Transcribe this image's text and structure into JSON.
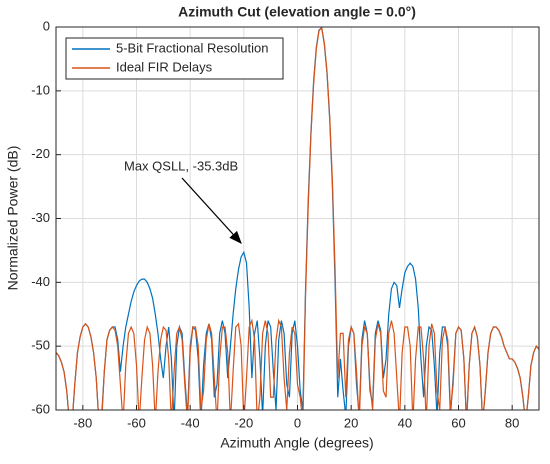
{
  "chart_data": {
    "type": "line",
    "title": "Azimuth Cut (elevation angle = 0.0°)",
    "xlabel": "Azimuth Angle (degrees)",
    "ylabel": "Normalized Power (dB)",
    "annotation": "Max QSLL, -35.3dB",
    "xlim": [
      -90,
      90
    ],
    "ylim": [
      -60,
      0
    ],
    "xticks": [
      -80,
      -60,
      -40,
      -20,
      0,
      20,
      40,
      60,
      80
    ],
    "yticks": [
      -60,
      -50,
      -40,
      -30,
      -20,
      -10,
      0
    ],
    "grid": true,
    "legend": "upper left",
    "x": [
      -90,
      -89,
      -88,
      -87,
      -86,
      -85,
      -84,
      -83,
      -82,
      -81,
      -80,
      -79,
      -78,
      -77,
      -76,
      -75,
      -74,
      -73,
      -72,
      -71,
      -70,
      -69,
      -68,
      -67,
      -66,
      -65,
      -64,
      -63,
      -62,
      -61,
      -60,
      -59,
      -58,
      -57,
      -56,
      -55,
      -54,
      -53,
      -52,
      -51,
      -50,
      -49,
      -48,
      -47,
      -46,
      -45,
      -44,
      -43,
      -42,
      -41,
      -40,
      -39,
      -38,
      -37,
      -36,
      -35,
      -34,
      -33,
      -32,
      -31,
      -30,
      -29,
      -28,
      -27,
      -26,
      -25,
      -24,
      -23,
      -22,
      -21,
      -20,
      -19,
      -18,
      -17,
      -16,
      -15,
      -14,
      -13,
      -12,
      -11,
      -10,
      -9,
      -8,
      -7,
      -6,
      -5,
      -4,
      -3,
      -2,
      -1,
      0,
      1,
      2,
      3,
      4,
      5,
      6,
      7,
      8,
      9,
      10,
      11,
      12,
      13,
      14,
      15,
      16,
      17,
      18,
      19,
      20,
      21,
      22,
      23,
      24,
      25,
      26,
      27,
      28,
      29,
      30,
      31,
      32,
      33,
      34,
      35,
      36,
      37,
      38,
      39,
      40,
      41,
      42,
      43,
      44,
      45,
      46,
      47,
      48,
      49,
      50,
      51,
      52,
      53,
      54,
      55,
      56,
      57,
      58,
      59,
      60,
      61,
      62,
      63,
      64,
      65,
      66,
      67,
      68,
      69,
      70,
      71,
      72,
      73,
      74,
      75,
      76,
      77,
      78,
      79,
      80,
      81,
      82,
      83,
      84,
      85,
      86,
      87,
      88,
      89,
      90
    ],
    "series": [
      {
        "name": "5-Bit Fractional Resolution",
        "color": "#0072BD",
        "values": [
          -51,
          -51.5,
          -52.5,
          -54,
          -57,
          -62,
          -62,
          -56,
          -51,
          -48.5,
          -47,
          -46.5,
          -47,
          -48.5,
          -51,
          -55,
          -62,
          -61,
          -54,
          -49,
          -47.5,
          -47,
          -47,
          -49,
          -54,
          -50,
          -47,
          -45,
          -43,
          -41.5,
          -40.5,
          -39.8,
          -39.5,
          -39.5,
          -40,
          -41,
          -42.5,
          -45,
          -48,
          -52,
          -55,
          -50,
          -47,
          -52,
          -62,
          -50,
          -47,
          -48,
          -55,
          -61,
          -50,
          -47,
          -47.5,
          -52,
          -62,
          -53,
          -48,
          -46.5,
          -49,
          -58,
          -56,
          -48,
          -46,
          -48,
          -55,
          -50,
          -45,
          -41,
          -38,
          -36,
          -35.3,
          -37,
          -44,
          -55,
          -48,
          -46,
          -52,
          -61,
          -50,
          -46,
          -47,
          -54,
          -60,
          -49,
          -46,
          -48,
          -56,
          -58,
          -48,
          -46,
          -50,
          -57,
          -60,
          -41,
          -27,
          -16.5,
          -8.5,
          -3.2,
          -0.5,
          -0.1,
          -2.7,
          -7.3,
          -14.5,
          -25,
          -40,
          -58,
          -52,
          -57,
          -61,
          -50,
          -47,
          -48,
          -56,
          -61,
          -49,
          -46,
          -48,
          -57,
          -59,
          -48,
          -46,
          -47.5,
          -55,
          -52,
          -45,
          -41,
          -40,
          -40.5,
          -44,
          -41,
          -38.5,
          -37.5,
          -37,
          -37.5,
          -39.5,
          -44,
          -52,
          -58,
          -50,
          -47,
          -47.5,
          -53,
          -61,
          -51,
          -47,
          -47,
          -50,
          -61,
          -55,
          -48,
          -47,
          -47.5,
          -52,
          -62,
          -53,
          -48,
          -47,
          -48.5,
          -53,
          -62,
          -57,
          -51,
          -48,
          -47,
          -47,
          -47.5,
          -48.5,
          -50,
          -51,
          -52,
          -52,
          -52.5,
          -53.5,
          -55,
          -58,
          -62,
          -58,
          -53,
          -51,
          -50,
          -50.5
        ]
      },
      {
        "name": "Ideal FIR Delays",
        "color": "#D95319",
        "values": [
          -51,
          -51.5,
          -52.5,
          -54,
          -57,
          -62,
          -62,
          -56,
          -51,
          -48.5,
          -47,
          -46.5,
          -47,
          -48.5,
          -51,
          -55,
          -62,
          -62,
          -54,
          -49,
          -47.5,
          -47,
          -47.5,
          -50,
          -56,
          -62,
          -53,
          -48,
          -47,
          -48,
          -53,
          -62,
          -55,
          -49,
          -47,
          -48,
          -53,
          -62,
          -54,
          -49,
          -47,
          -47.5,
          -52,
          -62,
          -54,
          -48,
          -47,
          -49,
          -56,
          -62,
          -51,
          -47,
          -47,
          -50,
          -60,
          -57,
          -49,
          -46.5,
          -48,
          -55,
          -62,
          -52,
          -47,
          -47,
          -51,
          -62,
          -54,
          -47,
          -46.5,
          -50,
          -62,
          -55,
          -47,
          -46,
          -49,
          -62,
          -58,
          -48,
          -46,
          -48,
          -58,
          -58,
          -49,
          -46,
          -47,
          -55,
          -60,
          -51,
          -47,
          -48,
          -56,
          -58,
          -62,
          -42,
          -28,
          -17,
          -9,
          -3.5,
          -0.6,
          -0.1,
          -2.5,
          -7,
          -14,
          -24,
          -38,
          -55,
          -48,
          -48,
          -58,
          -49,
          -47,
          -48,
          -54,
          -62,
          -50,
          -47,
          -48,
          -56,
          -60,
          -49,
          -46.5,
          -48,
          -57,
          -58,
          -48,
          -46,
          -48,
          -55,
          -62,
          -51,
          -47,
          -47,
          -50,
          -62,
          -52,
          -47,
          -47,
          -52,
          -62,
          -50,
          -46.5,
          -48,
          -57,
          -60,
          -49,
          -47,
          -49,
          -60,
          -56,
          -48,
          -47,
          -47.5,
          -52,
          -62,
          -53,
          -48,
          -47,
          -48.5,
          -53,
          -62,
          -57,
          -51,
          -48,
          -47,
          -47,
          -47.5,
          -48.5,
          -50,
          -51,
          -52,
          -52,
          -52.5,
          -53.5,
          -55,
          -58,
          -62,
          -58,
          -53,
          -51,
          -50,
          -50.5
        ]
      }
    ]
  }
}
